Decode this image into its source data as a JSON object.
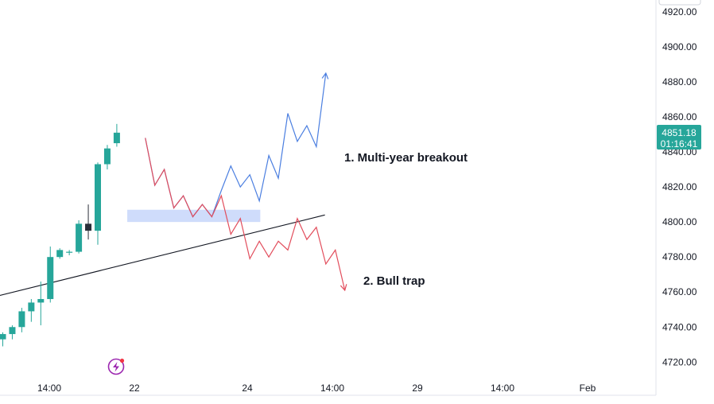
{
  "chart_data": {
    "type": "candlestick",
    "y_axis": {
      "ticks": [
        4720,
        4740,
        4760,
        4780,
        4800,
        4820,
        4840,
        4860,
        4880,
        4900,
        4920
      ],
      "tick_labels": [
        "4720.00",
        "4740.00",
        "4760.00",
        "4780.00",
        "4800.00",
        "4820.00",
        "4840.00",
        "4860.00",
        "4880.00",
        "4900.00",
        "4920.00"
      ]
    },
    "x_axis": {
      "tick_labels": [
        "14:00",
        "22",
        "24",
        "14:00",
        "29",
        "14:00",
        "Feb"
      ]
    },
    "candles": [
      {
        "open": 4733,
        "high": 4737,
        "low": 4729,
        "close": 4736
      },
      {
        "open": 4736,
        "high": 4741,
        "low": 4733,
        "close": 4740
      },
      {
        "open": 4740,
        "high": 4751,
        "low": 4737,
        "close": 4749
      },
      {
        "open": 4749,
        "high": 4756,
        "low": 4743,
        "close": 4754
      },
      {
        "open": 4754,
        "high": 4766,
        "low": 4741,
        "close": 4756
      },
      {
        "open": 4756,
        "high": 4786,
        "low": 4754,
        "close": 4780
      },
      {
        "open": 4780,
        "high": 4785,
        "low": 4779,
        "close": 4784
      },
      {
        "open": 4783,
        "high": 4784,
        "low": 4781,
        "close": 4783
      },
      {
        "open": 4783,
        "high": 4801,
        "low": 4782,
        "close": 4799
      },
      {
        "open": 4799,
        "high": 4810,
        "low": 4790,
        "close": 4795
      },
      {
        "open": 4795,
        "high": 4834,
        "low": 4787,
        "close": 4833
      },
      {
        "open": 4833,
        "high": 4844,
        "low": 4830,
        "close": 4842
      },
      {
        "open": 4845,
        "high": 4856,
        "low": 4843,
        "close": 4851
      }
    ],
    "current_price": {
      "price": "4851.18",
      "countdown": "01:16:41"
    },
    "trendline": {
      "from": {
        "x_index": -2.6,
        "price": 4755
      },
      "to": {
        "x_index": 33.9,
        "price": 4804
      }
    },
    "zone": {
      "from_index": 13.1,
      "to_index": 27.1,
      "price_low": 4800,
      "price_high": 4807
    },
    "scenarios": [
      {
        "label": "1. Multi-year breakout",
        "color": "#4a7ee0",
        "path": [
          {
            "x_index": 15.0,
            "price": 4848
          },
          {
            "x_index": 16.0,
            "price": 4821
          },
          {
            "x_index": 17.0,
            "price": 4830
          },
          {
            "x_index": 18.0,
            "price": 4808
          },
          {
            "x_index": 19.0,
            "price": 4815
          },
          {
            "x_index": 20.0,
            "price": 4803
          },
          {
            "x_index": 21.0,
            "price": 4810
          },
          {
            "x_index": 22.0,
            "price": 4803
          },
          {
            "x_index": 23.0,
            "price": 4818
          },
          {
            "x_index": 24.0,
            "price": 4832
          },
          {
            "x_index": 25.0,
            "price": 4820
          },
          {
            "x_index": 26.0,
            "price": 4827
          },
          {
            "x_index": 27.0,
            "price": 4812
          },
          {
            "x_index": 28.0,
            "price": 4838
          },
          {
            "x_index": 29.0,
            "price": 4825
          },
          {
            "x_index": 30.0,
            "price": 4862
          },
          {
            "x_index": 31.0,
            "price": 4846
          },
          {
            "x_index": 32.0,
            "price": 4855
          },
          {
            "x_index": 33.0,
            "price": 4843
          },
          {
            "x_index": 34.0,
            "price": 4885
          }
        ]
      },
      {
        "label": "2. Bull trap",
        "color": "#e24d5c",
        "path": [
          {
            "x_index": 15.0,
            "price": 4848
          },
          {
            "x_index": 16.0,
            "price": 4821
          },
          {
            "x_index": 17.0,
            "price": 4830
          },
          {
            "x_index": 18.0,
            "price": 4808
          },
          {
            "x_index": 19.0,
            "price": 4815
          },
          {
            "x_index": 20.0,
            "price": 4803
          },
          {
            "x_index": 21.0,
            "price": 4810
          },
          {
            "x_index": 22.0,
            "price": 4803
          },
          {
            "x_index": 23.0,
            "price": 4815
          },
          {
            "x_index": 24.0,
            "price": 4793
          },
          {
            "x_index": 25.0,
            "price": 4802
          },
          {
            "x_index": 26.0,
            "price": 4779
          },
          {
            "x_index": 27.0,
            "price": 4789
          },
          {
            "x_index": 28.0,
            "price": 4780
          },
          {
            "x_index": 29.0,
            "price": 4789
          },
          {
            "x_index": 30.0,
            "price": 4784
          },
          {
            "x_index": 31.0,
            "price": 4802
          },
          {
            "x_index": 32.0,
            "price": 4790
          },
          {
            "x_index": 33.0,
            "price": 4797
          },
          {
            "x_index": 34.0,
            "price": 4776
          },
          {
            "x_index": 35.0,
            "price": 4784
          },
          {
            "x_index": 36.0,
            "price": 4761
          }
        ]
      }
    ],
    "colors": {
      "up": "#26a69a",
      "down": "#2a2e39",
      "axis_border": "#e0e3eb",
      "zone": "#cfdcfb",
      "price_badge": "#26a69a",
      "trendline": "#131722",
      "icon": "#9c27b0"
    },
    "grid": false,
    "watermark_icon": "lightning-icon"
  }
}
